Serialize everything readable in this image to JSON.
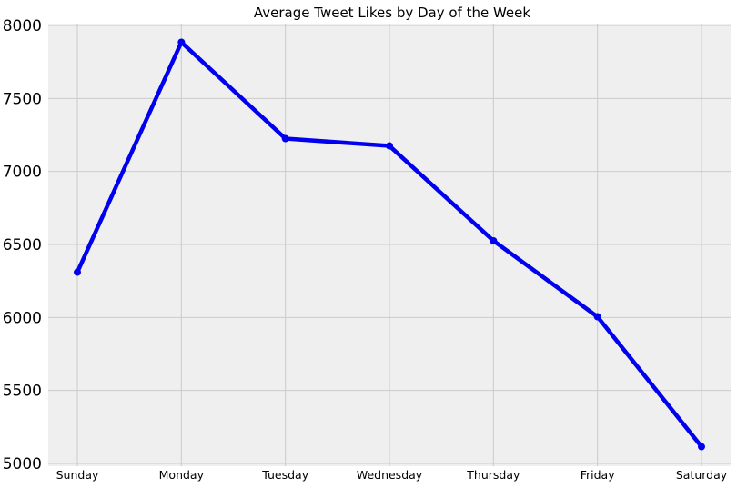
{
  "chart_data": {
    "type": "line",
    "title": "Average Tweet Likes by Day of the Week",
    "xlabel": "",
    "ylabel": "",
    "categories": [
      "Sunday",
      "Monday",
      "Tuesday",
      "Wednesday",
      "Thursday",
      "Friday",
      "Saturday"
    ],
    "series": [
      {
        "values": [
          6310,
          7885,
          7225,
          7175,
          6525,
          6005,
          5115
        ]
      }
    ],
    "ylim": [
      5000,
      8000
    ],
    "yticks": [
      5000,
      5500,
      6000,
      6500,
      7000,
      7500,
      8000
    ],
    "grid": true,
    "legend": "none",
    "colors": {
      "line": "#0000ee",
      "plot_background": "#efefef",
      "grid": "#cbcbcb"
    }
  }
}
